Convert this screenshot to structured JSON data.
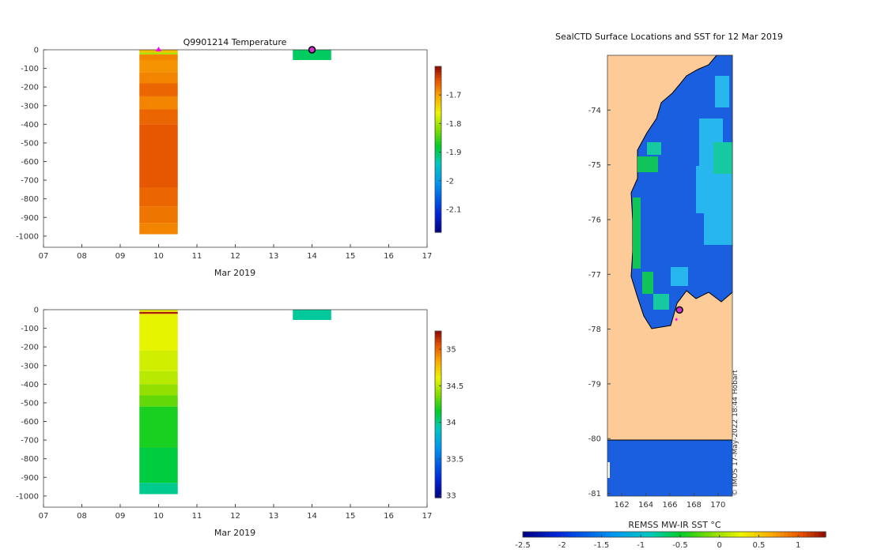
{
  "colors": {
    "land": "#fdcb98",
    "ocean_cold": "#1a5fdf",
    "ocean_green": "#11c45a",
    "ocean_cyan": "#28b6ee",
    "profile_dot": "#cc33cc",
    "coast": "#000000"
  },
  "chart_data": [
    {
      "type": "heatmap",
      "title": "Q9901214  Temperature",
      "xlabel": "Mar 2019",
      "ylabel": "",
      "x_tick_labels": [
        "07",
        "08",
        "09",
        "10",
        "11",
        "12",
        "13",
        "14",
        "15",
        "16",
        "17"
      ],
      "xlim": [
        7,
        17
      ],
      "y_ticks": [
        0,
        -100,
        -200,
        -300,
        -400,
        -500,
        -600,
        -700,
        -800,
        -900,
        -1000
      ],
      "ylim": [
        -1060,
        0
      ],
      "colorbar": {
        "range": [
          -2.18,
          -1.6
        ],
        "ticks": [
          -1.7,
          -1.8,
          -1.9,
          -2,
          -2.1
        ],
        "tick_labels": [
          "-1.7",
          "-1.8",
          "-1.9",
          "-2",
          "-2.1"
        ]
      },
      "profiles": [
        {
          "day": 10,
          "depth_min": -990,
          "depth_max": 0,
          "bands": [
            {
              "top": 0,
              "bottom": -15,
              "value": -1.72
            },
            {
              "top": -15,
              "bottom": -25,
              "value": -1.8
            },
            {
              "top": -25,
              "bottom": -55,
              "value": -1.68
            },
            {
              "top": -55,
              "bottom": -120,
              "value": -1.69
            },
            {
              "top": -120,
              "bottom": -180,
              "value": -1.68
            },
            {
              "top": -180,
              "bottom": -250,
              "value": -1.66
            },
            {
              "top": -250,
              "bottom": -320,
              "value": -1.68
            },
            {
              "top": -320,
              "bottom": -400,
              "value": -1.66
            },
            {
              "top": -400,
              "bottom": -740,
              "value": -1.65
            },
            {
              "top": -740,
              "bottom": -840,
              "value": -1.66
            },
            {
              "top": -840,
              "bottom": -930,
              "value": -1.67
            },
            {
              "top": -930,
              "bottom": -990,
              "value": -1.68
            }
          ]
        },
        {
          "day": 14,
          "depth_min": -55,
          "depth_max": 0,
          "bands": [
            {
              "top": 0,
              "bottom": -55,
              "value": -1.9
            }
          ]
        }
      ],
      "markers": [
        {
          "day": 10,
          "depth": 0,
          "shape": "triangle"
        },
        {
          "day": 14,
          "depth": 0,
          "shape": "dot"
        }
      ]
    },
    {
      "type": "heatmap",
      "title": "",
      "xlabel": "Mar 2019",
      "ylabel": "",
      "x_tick_labels": [
        "07",
        "08",
        "09",
        "10",
        "11",
        "12",
        "13",
        "14",
        "15",
        "16",
        "17"
      ],
      "xlim": [
        7,
        17
      ],
      "y_ticks": [
        0,
        -100,
        -200,
        -300,
        -400,
        -500,
        -600,
        -700,
        -800,
        -900,
        -1000
      ],
      "ylim": [
        -1060,
        0
      ],
      "colorbar": {
        "range": [
          32.97,
          35.25
        ],
        "ticks": [
          35,
          34.5,
          34,
          33.5,
          33
        ],
        "tick_labels": [
          "35",
          "34.5",
          "34",
          "33.5",
          "33"
        ]
      },
      "profiles": [
        {
          "day": 10,
          "depth_min": -990,
          "depth_max": 0,
          "bands": [
            {
              "top": 0,
              "bottom": -12,
              "value": 34.62
            },
            {
              "top": -12,
              "bottom": -22,
              "value": 35.2
            },
            {
              "top": -22,
              "bottom": -30,
              "value": 34.7
            },
            {
              "top": -30,
              "bottom": -220,
              "value": 34.6
            },
            {
              "top": -220,
              "bottom": -330,
              "value": 34.55
            },
            {
              "top": -330,
              "bottom": -400,
              "value": 34.5
            },
            {
              "top": -400,
              "bottom": -460,
              "value": 34.42
            },
            {
              "top": -460,
              "bottom": -520,
              "value": 34.33
            },
            {
              "top": -520,
              "bottom": -740,
              "value": 34.2
            },
            {
              "top": -740,
              "bottom": -930,
              "value": 34.12
            },
            {
              "top": -930,
              "bottom": -990,
              "value": 34.0
            }
          ]
        },
        {
          "day": 14,
          "depth_min": -55,
          "depth_max": 0,
          "bands": [
            {
              "top": 0,
              "bottom": -55,
              "value": 33.98
            }
          ]
        }
      ],
      "markers": []
    },
    {
      "type": "heatmap",
      "title": "SealCTD Surface Locations and SST for 12 Mar 2019",
      "xlabel": "",
      "ylabel": "",
      "x_ticks": [
        162,
        164,
        166,
        168,
        170
      ],
      "xlim": [
        160.8,
        171.2
      ],
      "y_ticks": [
        -74,
        -75,
        -76,
        -77,
        -78,
        -79,
        -80,
        -81
      ],
      "y_tick_labels": [
        "-74",
        "-75",
        "-76",
        "-77",
        "-78",
        "-79",
        "-80",
        "-81"
      ],
      "ylim": [
        -81.05,
        -73.0
      ],
      "colorbar": {
        "label": "REMSS MW-IR SST °C",
        "range": [
          -2.5,
          1.35
        ],
        "ticks": [
          -2.5,
          -2,
          -1.5,
          -1,
          -0.5,
          0,
          0.5,
          1
        ],
        "tick_labels": [
          "-2.5",
          "-2",
          "-1.5",
          "-1",
          "-0.5",
          "0",
          "0.5",
          "1"
        ]
      },
      "location": {
        "lon": 166.8,
        "lat": -77.65
      },
      "watermark": "© IMOS 17-May-2022 18:44 Hobart"
    }
  ]
}
